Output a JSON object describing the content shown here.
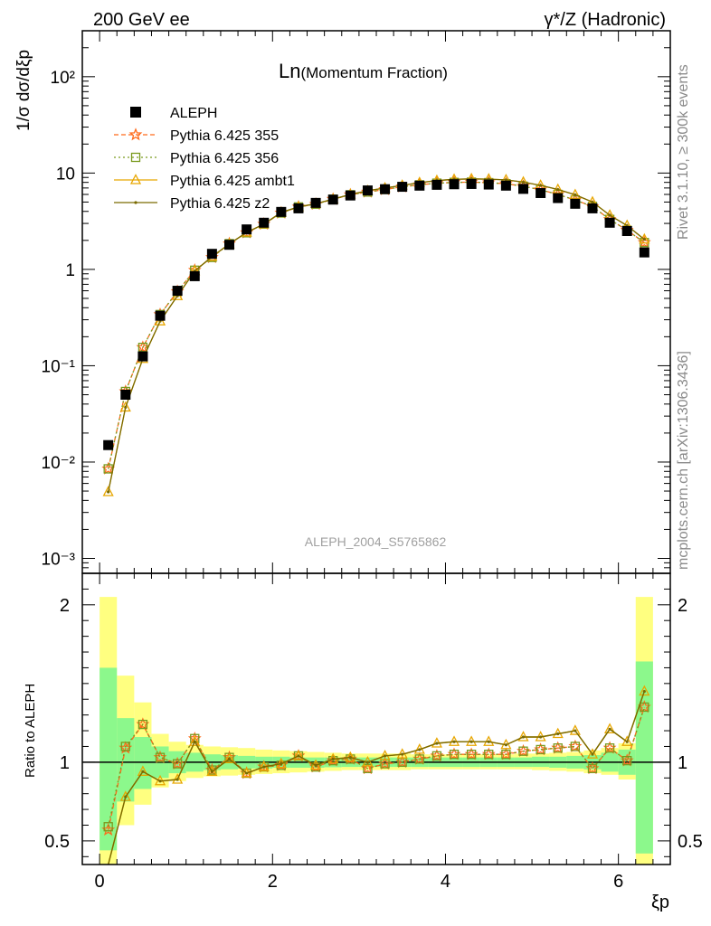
{
  "header": {
    "left": "200 GeV ee",
    "right": "γ*/Z (Hadronic)"
  },
  "side_labels": {
    "top": "Rivet 3.1.10, ≥ 300k events",
    "bottom": "mcplots.cern.ch [arXiv:1306.3436]"
  },
  "chart_data": {
    "type": "scatter",
    "title_main": "Ln",
    "title_sub": "(Momentum Fraction)",
    "analysis_label": "ALEPH_2004_S5765862",
    "ylabel_top": "1/σ dσ/dξp",
    "ylabel_ratio": "Ratio to ALEPH",
    "xlabel": "ξp",
    "xlim": [
      -0.2,
      6.6
    ],
    "ylim_top": [
      0.0007,
      300
    ],
    "ylog": true,
    "ylim_ratio": [
      0.35,
      2.2
    ],
    "x_ticks": [
      "0",
      "2",
      "4",
      "6"
    ],
    "y_ticks_top": [
      "10⁻³",
      "10⁻²",
      "10⁻¹",
      "1",
      "10",
      "10²"
    ],
    "y_ticks_ratio": [
      "0.5",
      "1",
      "2"
    ],
    "x": [
      0.1,
      0.3,
      0.5,
      0.7,
      0.9,
      1.1,
      1.3,
      1.5,
      1.7,
      1.9,
      2.1,
      2.3,
      2.5,
      2.7,
      2.9,
      3.1,
      3.3,
      3.5,
      3.7,
      3.9,
      4.1,
      4.3,
      4.5,
      4.7,
      4.9,
      5.1,
      5.3,
      5.5,
      5.7,
      5.9,
      6.1,
      6.3
    ],
    "bin_edges": [
      0,
      0.2,
      0.4,
      0.6,
      0.8,
      1.0,
      1.2,
      1.4,
      1.6,
      1.8,
      2.0,
      2.2,
      2.4,
      2.6,
      2.8,
      3.0,
      3.2,
      3.4,
      3.6,
      3.8,
      4.0,
      4.2,
      4.4,
      4.6,
      4.8,
      5.0,
      5.2,
      5.4,
      5.6,
      5.8,
      6.0,
      6.2,
      6.4
    ],
    "band_inner": [
      [
        0.44,
        1.6
      ],
      [
        0.75,
        1.28
      ],
      [
        0.83,
        1.16
      ],
      [
        0.9,
        1.1
      ],
      [
        0.93,
        1.07
      ],
      [
        0.94,
        1.06
      ],
      [
        0.95,
        1.05
      ],
      [
        0.955,
        1.045
      ],
      [
        0.96,
        1.04
      ],
      [
        0.96,
        1.035
      ],
      [
        0.965,
        1.035
      ],
      [
        0.965,
        1.03
      ],
      [
        0.965,
        1.03
      ],
      [
        0.968,
        1.03
      ],
      [
        0.97,
        1.03
      ],
      [
        0.97,
        1.03
      ],
      [
        0.97,
        1.03
      ],
      [
        0.97,
        1.03
      ],
      [
        0.97,
        1.03
      ],
      [
        0.97,
        1.03
      ],
      [
        0.97,
        1.03
      ],
      [
        0.97,
        1.03
      ],
      [
        0.97,
        1.03
      ],
      [
        0.97,
        1.03
      ],
      [
        0.97,
        1.03
      ],
      [
        0.97,
        1.035
      ],
      [
        0.965,
        1.035
      ],
      [
        0.96,
        1.04
      ],
      [
        0.955,
        1.045
      ],
      [
        0.94,
        1.06
      ],
      [
        0.92,
        1.08
      ],
      [
        0.42,
        1.64
      ]
    ],
    "band_outer": [
      [
        0.3,
        2.05
      ],
      [
        0.6,
        1.55
      ],
      [
        0.73,
        1.38
      ],
      [
        0.84,
        1.18
      ],
      [
        0.88,
        1.13
      ],
      [
        0.9,
        1.11
      ],
      [
        0.91,
        1.1
      ],
      [
        0.915,
        1.095
      ],
      [
        0.92,
        1.09
      ],
      [
        0.925,
        1.08
      ],
      [
        0.93,
        1.075
      ],
      [
        0.935,
        1.07
      ],
      [
        0.94,
        1.065
      ],
      [
        0.945,
        1.06
      ],
      [
        0.95,
        1.055
      ],
      [
        0.95,
        1.055
      ],
      [
        0.95,
        1.055
      ],
      [
        0.95,
        1.055
      ],
      [
        0.955,
        1.05
      ],
      [
        0.955,
        1.05
      ],
      [
        0.955,
        1.05
      ],
      [
        0.955,
        1.05
      ],
      [
        0.955,
        1.05
      ],
      [
        0.955,
        1.05
      ],
      [
        0.955,
        1.055
      ],
      [
        0.95,
        1.055
      ],
      [
        0.945,
        1.06
      ],
      [
        0.94,
        1.065
      ],
      [
        0.93,
        1.075
      ],
      [
        0.92,
        1.09
      ],
      [
        0.89,
        1.12
      ],
      [
        0.3,
        2.05
      ]
    ],
    "data": {
      "name": "ALEPH",
      "y": [
        0.015,
        0.05,
        0.125,
        0.33,
        0.6,
        0.85,
        1.45,
        1.8,
        2.6,
        3.05,
        3.95,
        4.3,
        4.9,
        5.3,
        5.85,
        6.6,
        6.8,
        7.2,
        7.4,
        7.55,
        7.65,
        7.7,
        7.6,
        7.4,
        6.85,
        6.2,
        5.5,
        4.8,
        4.3,
        3.05,
        2.5,
        1.5
      ]
    },
    "series": [
      {
        "name": "Pythia 6.425 355",
        "color": "#ff6a1a",
        "dash": "5,3",
        "marker": "star",
        "y": [
          0.0085,
          0.054,
          0.155,
          0.34,
          0.59,
          0.98,
          1.33,
          1.85,
          2.4,
          2.95,
          3.85,
          4.45,
          4.75,
          5.35,
          5.95,
          6.35,
          6.75,
          7.2,
          7.55,
          7.85,
          8.0,
          8.05,
          7.95,
          7.75,
          7.3,
          6.7,
          6.0,
          5.25,
          4.5,
          3.3,
          2.55,
          1.9
        ]
      },
      {
        "name": "Pythia 6.425 356",
        "color": "#7a9a1e",
        "dash": "2,3",
        "marker": "square",
        "y": [
          0.0085,
          0.054,
          0.155,
          0.34,
          0.59,
          0.98,
          1.33,
          1.85,
          2.4,
          2.95,
          3.85,
          4.45,
          4.75,
          5.35,
          5.95,
          6.35,
          6.75,
          7.2,
          7.55,
          7.85,
          8.0,
          8.05,
          7.95,
          7.75,
          7.3,
          6.7,
          6.0,
          5.25,
          4.5,
          3.3,
          2.55,
          1.9
        ]
      },
      {
        "name": "Pythia 6.425 ambt1",
        "color": "#e8a600",
        "dash": "",
        "marker": "triangle",
        "y": [
          0.0049,
          0.037,
          0.118,
          0.29,
          0.53,
          0.96,
          1.36,
          1.83,
          2.42,
          2.95,
          3.9,
          4.45,
          4.8,
          5.35,
          6.0,
          6.55,
          7.0,
          7.45,
          7.95,
          8.35,
          8.6,
          8.7,
          8.65,
          8.5,
          8.05,
          7.45,
          6.75,
          5.95,
          5.0,
          3.65,
          2.85,
          2.05
        ]
      },
      {
        "name": "Pythia 6.425 z2",
        "color": "#7a6a00",
        "dash": "",
        "marker": "dot",
        "y": [
          0.0049,
          0.037,
          0.118,
          0.29,
          0.53,
          0.96,
          1.36,
          1.83,
          2.42,
          2.95,
          3.9,
          4.45,
          4.8,
          5.35,
          6.0,
          6.55,
          7.0,
          7.45,
          7.95,
          8.35,
          8.6,
          8.7,
          8.65,
          8.5,
          8.05,
          7.45,
          6.75,
          5.95,
          5.0,
          3.65,
          2.85,
          2.05
        ]
      }
    ],
    "ratio_series": [
      {
        "name": "Pythia 6.425 355",
        "y": [
          0.57,
          1.09,
          1.24,
          1.03,
          0.99,
          1.15,
          0.95,
          1.03,
          0.93,
          0.97,
          0.98,
          1.04,
          0.97,
          1.01,
          1.02,
          0.96,
          0.99,
          1.0,
          1.02,
          1.04,
          1.05,
          1.05,
          1.05,
          1.05,
          1.07,
          1.08,
          1.09,
          1.1,
          0.96,
          1.09,
          1.01,
          1.35
        ]
      },
      {
        "name": "Pythia 6.425 356",
        "y": [
          0.59,
          1.1,
          1.24,
          1.03,
          0.99,
          1.15,
          0.95,
          1.03,
          0.93,
          0.97,
          0.98,
          1.04,
          0.97,
          1.01,
          1.02,
          0.96,
          0.99,
          1.0,
          1.02,
          1.04,
          1.05,
          1.05,
          1.05,
          1.05,
          1.07,
          1.08,
          1.09,
          1.1,
          0.96,
          1.09,
          1.01,
          1.35
        ]
      },
      {
        "name": "Pythia 6.425 ambt1",
        "y": [
          0.32,
          0.78,
          0.94,
          0.88,
          0.89,
          1.13,
          0.94,
          1.02,
          0.93,
          0.97,
          0.99,
          1.04,
          0.98,
          1.02,
          1.03,
          1.0,
          1.04,
          1.05,
          1.08,
          1.12,
          1.13,
          1.13,
          1.13,
          1.11,
          1.16,
          1.16,
          1.18,
          1.2,
          1.05,
          1.21,
          1.13,
          1.45
        ]
      },
      {
        "name": "Pythia 6.425 z2",
        "y": [
          0.32,
          0.78,
          0.94,
          0.88,
          0.89,
          1.13,
          0.94,
          1.02,
          0.93,
          0.97,
          0.99,
          1.04,
          0.98,
          1.02,
          1.03,
          1.0,
          1.04,
          1.05,
          1.08,
          1.12,
          1.13,
          1.13,
          1.13,
          1.11,
          1.16,
          1.16,
          1.18,
          1.2,
          1.05,
          1.21,
          1.13,
          1.45
        ]
      }
    ]
  }
}
